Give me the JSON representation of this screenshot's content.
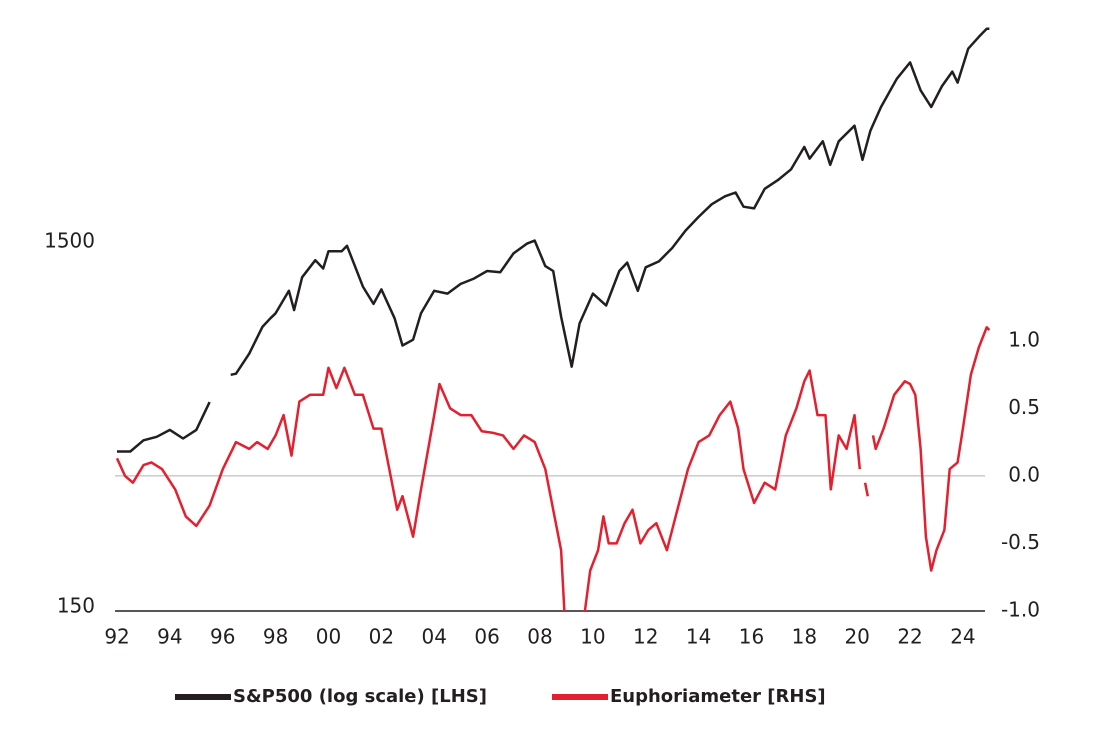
{
  "chart_data": {
    "type": "line",
    "xlim": [
      1991.9,
      2025.1
    ],
    "xticks": [
      {
        "value": 1992,
        "label": "92"
      },
      {
        "value": 1994,
        "label": "94"
      },
      {
        "value": 1996,
        "label": "96"
      },
      {
        "value": 1998,
        "label": "98"
      },
      {
        "value": 2000,
        "label": "00"
      },
      {
        "value": 2002,
        "label": "02"
      },
      {
        "value": 2004,
        "label": "04"
      },
      {
        "value": 2006,
        "label": "06"
      },
      {
        "value": 2008,
        "label": "08"
      },
      {
        "value": 2010,
        "label": "10"
      },
      {
        "value": 2012,
        "label": "12"
      },
      {
        "value": 2014,
        "label": "14"
      },
      {
        "value": 2016,
        "label": "16"
      },
      {
        "value": 2018,
        "label": "18"
      },
      {
        "value": 2020,
        "label": "20"
      },
      {
        "value": 2022,
        "label": "22"
      },
      {
        "value": 2024,
        "label": "24"
      }
    ],
    "ylim": [
      150,
      6000
    ],
    "ylog": true,
    "yticks": [
      150,
      1500
    ],
    "y2lim": [
      -1,
      3.33
    ],
    "y2ticks": [
      {
        "value": -1,
        "label": "-1.0"
      },
      -0.5,
      {
        "value": 0,
        "label": "0.0"
      },
      0.5,
      {
        "value": 1,
        "label": "1.0"
      }
    ],
    "zero_line": true,
    "series": [
      {
        "name": "S&P500 (log scale) [LHS]",
        "color": "#231f20",
        "axis": "y",
        "x": [
          1992.0,
          1992.5,
          1993.0,
          1993.5,
          1994.0,
          1994.5,
          1995.0,
          1995.5,
          1995.9,
          1996.3,
          1996.5,
          1997.0,
          1997.5,
          1997.8,
          1998.0,
          1998.5,
          1998.7,
          1999.0,
          1999.5,
          1999.8,
          2000.0,
          2000.5,
          2000.7,
          2001.0,
          2001.3,
          2001.7,
          2002.0,
          2002.5,
          2002.8,
          2003.2,
          2003.5,
          2004.0,
          2004.5,
          2005.0,
          2005.5,
          2006.0,
          2006.5,
          2007.0,
          2007.5,
          2007.8,
          2008.2,
          2008.5,
          2008.8,
          2009.2,
          2009.5,
          2010.0,
          2010.5,
          2011.0,
          2011.3,
          2011.7,
          2012.0,
          2012.5,
          2013.0,
          2013.5,
          2014.0,
          2014.5,
          2015.0,
          2015.4,
          2015.7,
          2016.1,
          2016.5,
          2017.0,
          2017.5,
          2018.0,
          2018.2,
          2018.7,
          2018.98,
          2019.3,
          2019.9,
          2020.2,
          2020.5,
          2020.9,
          2021.5,
          2022.0,
          2022.4,
          2022.8,
          2023.2,
          2023.6,
          2023.8,
          2024.2,
          2024.6,
          2024.9,
          2025.0
        ],
        "values": [
          410,
          410,
          440,
          450,
          470,
          445,
          470,
          560,
          null,
          665,
          670,
          760,
          900,
          950,
          980,
          1130,
          1000,
          1230,
          1370,
          1300,
          1450,
          1450,
          1500,
          1320,
          1160,
          1040,
          1140,
          950,
          800,
          830,
          980,
          1130,
          1110,
          1180,
          1220,
          1280,
          1270,
          1430,
          1520,
          1550,
          1320,
          1280,
          960,
          700,
          920,
          1110,
          1030,
          1280,
          1350,
          1130,
          1310,
          1360,
          1480,
          1650,
          1800,
          1950,
          2050,
          2100,
          1920,
          1900,
          2150,
          2270,
          2430,
          2800,
          2600,
          2900,
          2500,
          2900,
          3200,
          2580,
          3100,
          3600,
          4300,
          4770,
          4000,
          3600,
          4100,
          4500,
          4200,
          5200,
          5600,
          5900,
          5900
        ]
      },
      {
        "name": "Euphoriameter [RHS]",
        "color": "#e4202e",
        "axis": "y2",
        "x": [
          1992.0,
          1992.3,
          1992.6,
          1993.0,
          1993.3,
          1993.7,
          1994.2,
          1994.6,
          1995.0,
          1995.5,
          1996.0,
          1996.5,
          1997.0,
          1997.3,
          1997.7,
          1998.0,
          1998.3,
          1998.6,
          1998.9,
          1999.3,
          1999.8,
          2000.0,
          2000.3,
          2000.6,
          2001.0,
          2001.3,
          2001.7,
          2002.0,
          2002.3,
          2002.6,
          2002.8,
          2003.2,
          2003.5,
          2004.0,
          2004.2,
          2004.6,
          2005.0,
          2005.4,
          2005.8,
          2006.2,
          2006.6,
          2007.0,
          2007.4,
          2007.8,
          2008.2,
          2008.5,
          2008.8,
          2008.95,
          2009.7,
          2009.9,
          2010.2,
          2010.4,
          2010.6,
          2010.9,
          2011.2,
          2011.5,
          2011.8,
          2012.1,
          2012.4,
          2012.8,
          2013.2,
          2013.6,
          2014.0,
          2014.4,
          2014.8,
          2015.2,
          2015.5,
          2015.7,
          2016.1,
          2016.5,
          2016.9,
          2017.3,
          2017.7,
          2018.0,
          2018.2,
          2018.5,
          2018.8,
          2019.0,
          2019.3,
          2019.6,
          2019.9,
          2020.1,
          2020.2,
          2020.3,
          2020.4,
          2020.5,
          2020.6,
          2020.7,
          2021.0,
          2021.4,
          2021.8,
          2022.0,
          2022.2,
          2022.4,
          2022.6,
          2022.8,
          2023.0,
          2023.3,
          2023.5,
          2023.8,
          2024.0,
          2024.3,
          2024.6,
          2024.9,
          2025.0
        ],
        "values": [
          0.13,
          0.0,
          -0.05,
          0.08,
          0.1,
          0.05,
          -0.1,
          -0.3,
          -0.37,
          -0.22,
          0.05,
          0.25,
          0.2,
          0.25,
          0.2,
          0.3,
          0.45,
          0.15,
          0.55,
          0.6,
          0.6,
          0.8,
          0.65,
          0.8,
          0.6,
          0.6,
          0.35,
          0.35,
          0.05,
          -0.25,
          -0.15,
          -0.45,
          -0.1,
          0.45,
          0.68,
          0.5,
          0.45,
          0.45,
          0.33,
          0.32,
          0.3,
          0.2,
          0.3,
          0.25,
          0.05,
          -0.25,
          -0.55,
          -1.1,
          -1.0,
          -0.7,
          -0.55,
          -0.3,
          -0.5,
          -0.5,
          -0.35,
          -0.25,
          -0.5,
          -0.4,
          -0.35,
          -0.55,
          -0.25,
          0.05,
          0.25,
          0.3,
          0.45,
          0.55,
          0.35,
          0.05,
          -0.2,
          -0.05,
          -0.1,
          0.3,
          0.5,
          0.7,
          0.78,
          0.45,
          0.45,
          -0.1,
          0.3,
          0.2,
          0.45,
          0.05,
          null,
          -0.05,
          -0.15,
          null,
          0.3,
          0.2,
          0.35,
          0.6,
          0.7,
          0.68,
          0.6,
          0.2,
          -0.45,
          -0.7,
          -0.55,
          -0.4,
          0.05,
          0.1,
          0.35,
          0.75,
          0.95,
          1.1,
          1.08
        ]
      }
    ]
  }
}
